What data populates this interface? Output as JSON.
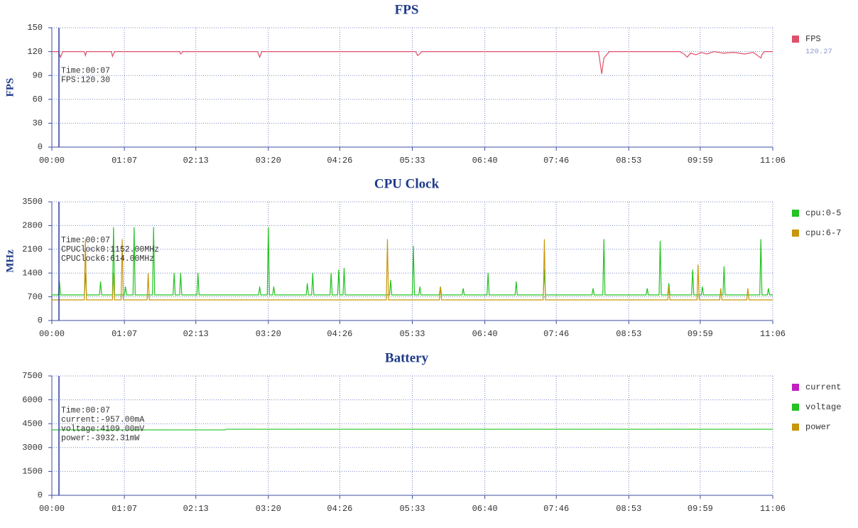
{
  "chart_data": [
    {
      "type": "line",
      "title": "FPS",
      "ylabel": "FPS",
      "x": [
        0,
        6,
        8,
        10,
        30,
        31,
        32,
        55,
        56,
        58,
        118,
        119,
        121,
        190,
        192,
        194,
        336,
        338,
        342,
        505,
        508,
        510,
        515,
        580,
        584,
        587,
        590,
        595,
        600,
        605,
        612,
        620,
        630,
        640,
        648,
        655,
        656,
        658,
        666
      ],
      "series": [
        {
          "name": "FPS",
          "color": "#e0506a",
          "legend_value": 120.27,
          "values": [
            120,
            120,
            113,
            120,
            120,
            115,
            120,
            120,
            114,
            120,
            120,
            117,
            120,
            120,
            113,
            120,
            120,
            115,
            120,
            120,
            92,
            112,
            120,
            120,
            117,
            113,
            118,
            116,
            119,
            117,
            120,
            118,
            119,
            117,
            119,
            112,
            116,
            120,
            120
          ]
        }
      ],
      "xlim": [
        0,
        666
      ],
      "xticks": [
        {
          "value": 0,
          "label": "00:00"
        },
        {
          "value": 67,
          "label": "01:07"
        },
        {
          "value": 133,
          "label": "02:13"
        },
        {
          "value": 200,
          "label": "03:20"
        },
        {
          "value": 266,
          "label": "04:26"
        },
        {
          "value": 333,
          "label": "05:33"
        },
        {
          "value": 400,
          "label": "06:40"
        },
        {
          "value": 466,
          "label": "07:46"
        },
        {
          "value": 533,
          "label": "08:53"
        },
        {
          "value": 599,
          "label": "09:59"
        },
        {
          "value": 666,
          "label": "11:06"
        }
      ],
      "ylim": [
        0,
        150
      ],
      "yticks": [
        0,
        30,
        60,
        90,
        120,
        150
      ],
      "grid": true,
      "annotations": [
        "Time:00:07",
        "FPS:120.30"
      ]
    },
    {
      "type": "line",
      "title": "CPU Clock",
      "ylabel": "MHz",
      "x": [
        0,
        6,
        7,
        8,
        30,
        31,
        32,
        44,
        45,
        46,
        56,
        57,
        58,
        64,
        65,
        66,
        67,
        68,
        69,
        75,
        76,
        77,
        88,
        89,
        90,
        93,
        94,
        95,
        112,
        113,
        114,
        118,
        119,
        120,
        134,
        135,
        136,
        191,
        192,
        193,
        199,
        200,
        201,
        204,
        205,
        206,
        235,
        236,
        237,
        240,
        241,
        242,
        257,
        258,
        259,
        264,
        265,
        266,
        269,
        270,
        271,
        309,
        310,
        311,
        312,
        313,
        314,
        333,
        334,
        335,
        339,
        340,
        341,
        358,
        359,
        360,
        379,
        380,
        381,
        402,
        403,
        404,
        428,
        429,
        430,
        454,
        455,
        456,
        499,
        500,
        501,
        509,
        510,
        511,
        549,
        550,
        551,
        561,
        562,
        563,
        569,
        570,
        571,
        591,
        592,
        593,
        596,
        597,
        598,
        600,
        601,
        602,
        617,
        618,
        619,
        620,
        621,
        622,
        642,
        643,
        644,
        654,
        655,
        656,
        661,
        662,
        663,
        666
      ],
      "series": [
        {
          "name": "cpu:0-5",
          "color": "#22c322",
          "values": [
            754,
            754,
            1150,
            754,
            754,
            1400,
            754,
            754,
            1150,
            754,
            754,
            2750,
            754,
            754,
            754,
            754,
            754,
            1000,
            754,
            754,
            2750,
            754,
            754,
            754,
            754,
            754,
            2750,
            754,
            754,
            1400,
            754,
            754,
            1400,
            754,
            754,
            1400,
            754,
            754,
            1000,
            754,
            754,
            2750,
            754,
            754,
            1000,
            754,
            754,
            1100,
            754,
            754,
            1400,
            754,
            754,
            1400,
            754,
            754,
            1500,
            754,
            754,
            1550,
            754,
            754,
            754,
            754,
            754,
            1200,
            754,
            754,
            2200,
            754,
            754,
            1000,
            754,
            754,
            1000,
            754,
            754,
            950,
            754,
            754,
            1400,
            754,
            754,
            1150,
            754,
            754,
            1500,
            754,
            754,
            950,
            754,
            754,
            2400,
            754,
            754,
            950,
            754,
            754,
            2350,
            754,
            754,
            1100,
            754,
            754,
            1500,
            754,
            754,
            754,
            754,
            754,
            1000,
            754,
            754,
            754,
            754,
            754,
            1600,
            754,
            754,
            754,
            754,
            754,
            2400,
            754,
            754,
            950,
            754,
            754
          ]
        },
        {
          "name": "cpu:6-7",
          "color": "#c8960a",
          "values": [
            608,
            608,
            608,
            608,
            608,
            2400,
            608,
            608,
            608,
            608,
            608,
            1400,
            608,
            608,
            2400,
            608,
            608,
            608,
            608,
            608,
            608,
            608,
            608,
            1400,
            608,
            608,
            608,
            608,
            608,
            608,
            608,
            608,
            608,
            608,
            608,
            608,
            608,
            608,
            608,
            608,
            608,
            608,
            608,
            608,
            608,
            608,
            608,
            608,
            608,
            608,
            608,
            608,
            608,
            608,
            608,
            608,
            608,
            608,
            608,
            608,
            608,
            608,
            2400,
            608,
            608,
            608,
            608,
            608,
            608,
            608,
            608,
            608,
            608,
            608,
            1000,
            608,
            608,
            608,
            608,
            608,
            608,
            608,
            608,
            608,
            608,
            608,
            2400,
            608,
            608,
            608,
            608,
            608,
            608,
            608,
            608,
            608,
            608,
            608,
            608,
            608,
            608,
            1000,
            608,
            608,
            608,
            608,
            608,
            1650,
            608,
            608,
            608,
            608,
            608,
            950,
            608,
            608,
            608,
            608,
            608,
            950,
            608,
            608,
            608,
            608,
            608,
            608,
            608,
            608
          ]
        }
      ],
      "xlim": [
        0,
        666
      ],
      "xticks": [
        {
          "value": 0,
          "label": "00:00"
        },
        {
          "value": 67,
          "label": "01:07"
        },
        {
          "value": 133,
          "label": "02:13"
        },
        {
          "value": 200,
          "label": "03:20"
        },
        {
          "value": 266,
          "label": "04:26"
        },
        {
          "value": 333,
          "label": "05:33"
        },
        {
          "value": 400,
          "label": "06:40"
        },
        {
          "value": 466,
          "label": "07:46"
        },
        {
          "value": 533,
          "label": "08:53"
        },
        {
          "value": 599,
          "label": "09:59"
        },
        {
          "value": 666,
          "label": "11:06"
        }
      ],
      "ylim": [
        0,
        3500
      ],
      "yticks": [
        0,
        700,
        1400,
        2100,
        2800,
        3500
      ],
      "grid": true,
      "annotations": [
        "Time:00:07",
        "CPUClock0:1152.00MHz",
        "CPUClock6:614.00MHz"
      ]
    },
    {
      "type": "line",
      "title": "Battery",
      "x": [
        0,
        160,
        161,
        666
      ],
      "series": [
        {
          "name": "current",
          "color": "#c020c0",
          "values": [
            null,
            null,
            null,
            null
          ]
        },
        {
          "name": "voltage",
          "color": "#22c322",
          "values": [
            4109,
            4109,
            4150,
            4150
          ]
        },
        {
          "name": "power",
          "color": "#c8960a",
          "values": [
            null,
            null,
            null,
            null
          ]
        }
      ],
      "xlim": [
        0,
        666
      ],
      "xticks": [
        {
          "value": 0,
          "label": "00:00"
        },
        {
          "value": 67,
          "label": "01:07"
        },
        {
          "value": 133,
          "label": "02:13"
        },
        {
          "value": 200,
          "label": "03:20"
        },
        {
          "value": 266,
          "label": "04:26"
        },
        {
          "value": 333,
          "label": "05:33"
        },
        {
          "value": 400,
          "label": "06:40"
        },
        {
          "value": 466,
          "label": "07:46"
        },
        {
          "value": 533,
          "label": "08:53"
        },
        {
          "value": 599,
          "label": "09:59"
        },
        {
          "value": 666,
          "label": "11:06"
        }
      ],
      "ylim": [
        0,
        7500
      ],
      "yticks": [
        0,
        1500,
        3000,
        4500,
        6000,
        7500
      ],
      "grid": true,
      "annotations": [
        "Time:00:07",
        "current:-957.00mA",
        "voltage:4109.00mV",
        "power:-3932.31mW"
      ]
    }
  ]
}
